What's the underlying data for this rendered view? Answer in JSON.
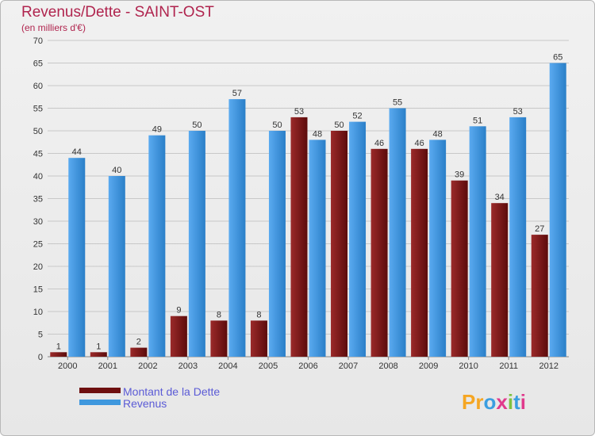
{
  "title": "Revenus/Dette - SAINT-OST",
  "subtitle": "(en milliers d'€)",
  "chart_data": {
    "type": "bar",
    "title": "Revenus/Dette - SAINT-OST",
    "subtitle": "(en milliers d'€)",
    "categories": [
      "2000",
      "2001",
      "2002",
      "2003",
      "2004",
      "2005",
      "2006",
      "2007",
      "2008",
      "2009",
      "2010",
      "2011",
      "2012"
    ],
    "series": [
      {
        "name": "Montant de la Dette",
        "color": "#7a1818",
        "values": [
          1,
          1,
          2,
          9,
          8,
          8,
          53,
          50,
          46,
          46,
          39,
          34,
          27
        ]
      },
      {
        "name": "Revenus",
        "color": "#3f98de",
        "values": [
          44,
          40,
          49,
          50,
          57,
          50,
          48,
          52,
          55,
          48,
          51,
          53,
          65
        ]
      }
    ],
    "ylim": [
      0,
      70
    ],
    "yticks": [
      0,
      5,
      10,
      15,
      20,
      25,
      30,
      35,
      40,
      45,
      50,
      55,
      60,
      65,
      70
    ],
    "grid": true,
    "legend_position": "bottom-left"
  },
  "logo": {
    "text": "Proxiti",
    "letters": [
      "P",
      "r",
      "o",
      "x",
      "i",
      "t",
      "i"
    ],
    "colors": [
      "#f5a623",
      "#f5a623",
      "#3b9ee0",
      "#e03a8c",
      "#7fc241",
      "#3b9ee0",
      "#e03a8c"
    ]
  }
}
